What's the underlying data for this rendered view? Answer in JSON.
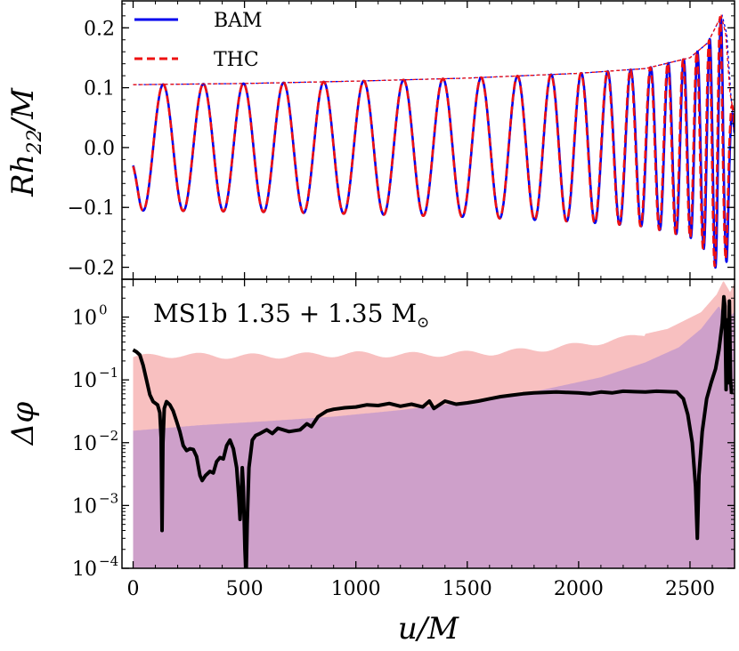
{
  "chart_data": [
    {
      "type": "line",
      "panel": "top",
      "ylabel": "Rh_22/M",
      "ylabel_parts": {
        "main": "Rh",
        "sub": "22",
        "tail": "/M"
      },
      "xlim": [
        -50,
        2700
      ],
      "ylim": [
        -0.22,
        0.245
      ],
      "yticks": [
        -0.2,
        -0.1,
        0.0,
        0.1,
        0.2
      ],
      "ytick_labels": [
        "−0.2",
        "−0.1",
        "0.0",
        "0.1",
        "0.2"
      ],
      "legend": {
        "placement": "top-left",
        "entries": [
          "BAM",
          "THC"
        ]
      },
      "series": [
        {
          "name": "BAM",
          "color": "#0000ee",
          "style": "solid",
          "t_end": 2700,
          "phase_offset": 0.0,
          "amplitude_points": [
            [
              0,
              0.105
            ],
            [
              500,
              0.107
            ],
            [
              1000,
              0.111
            ],
            [
              1500,
              0.116
            ],
            [
              2000,
              0.124
            ],
            [
              2300,
              0.132
            ],
            [
              2500,
              0.15
            ],
            [
              2580,
              0.175
            ],
            [
              2620,
              0.205
            ],
            [
              2645,
              0.22
            ],
            [
              2665,
              0.19
            ],
            [
              2685,
              0.08
            ],
            [
              2700,
              0.03
            ]
          ],
          "phase": {
            "f0": 0.00555,
            "f_end": 0.0215,
            "t_merge": 2650,
            "f_post": 0.017
          }
        },
        {
          "name": "THC",
          "color": "#ee1111",
          "style": "dashed",
          "t_end": 2700,
          "phase_offset": 0.02,
          "amplitude_points": [
            [
              0,
              0.105
            ],
            [
              500,
              0.107
            ],
            [
              1000,
              0.111
            ],
            [
              1500,
              0.116
            ],
            [
              2000,
              0.124
            ],
            [
              2300,
              0.132
            ],
            [
              2500,
              0.15
            ],
            [
              2580,
              0.175
            ],
            [
              2620,
              0.205
            ],
            [
              2640,
              0.222
            ],
            [
              2660,
              0.19
            ],
            [
              2680,
              0.09
            ],
            [
              2700,
              0.05
            ]
          ],
          "phase": {
            "f0": 0.00555,
            "f_end": 0.0215,
            "t_merge": 2645,
            "f_post": 0.017
          }
        }
      ]
    },
    {
      "type": "line",
      "panel": "bottom",
      "ylabel": "Δφ",
      "xlabel": "u/M",
      "xlim": [
        -50,
        2700
      ],
      "yscale": "log",
      "ylim": [
        0.0001,
        4.0
      ],
      "ytick_exponents": [
        0,
        -1,
        -2,
        -3,
        -4
      ],
      "ytick_base": "10",
      "xticks": [
        0,
        500,
        1000,
        1500,
        2000,
        2500
      ],
      "xtick_labels": [
        "0",
        "500",
        "1000",
        "1500",
        "2000",
        "2500"
      ],
      "annotation": {
        "text": "MS1b 1.35 + 1.35 M",
        "symbol": "⊙"
      },
      "bands": [
        {
          "name": "error-upper",
          "color": "#f7b5b5",
          "opacity": 0.85,
          "points": [
            [
              0,
              0.23
            ],
            [
              200,
              0.25
            ],
            [
              400,
              0.24
            ],
            [
              600,
              0.24
            ],
            [
              800,
              0.25
            ],
            [
              1000,
              0.26
            ],
            [
              1200,
              0.25
            ],
            [
              1400,
              0.26
            ],
            [
              1600,
              0.27
            ],
            [
              1800,
              0.3
            ],
            [
              2000,
              0.36
            ],
            [
              2200,
              0.45
            ],
            [
              2400,
              0.65
            ],
            [
              2550,
              1.2
            ],
            [
              2620,
              2.3
            ],
            [
              2650,
              3.8
            ],
            [
              2680,
              2.5
            ],
            [
              2700,
              3.5
            ]
          ],
          "wiggle": 0.1
        },
        {
          "name": "error-lower",
          "color": "#c79acb",
          "opacity": 0.85,
          "points": [
            [
              0,
              0.0155
            ],
            [
              300,
              0.019
            ],
            [
              600,
              0.022
            ],
            [
              900,
              0.026
            ],
            [
              1200,
              0.033
            ],
            [
              1500,
              0.045
            ],
            [
              1800,
              0.065
            ],
            [
              2100,
              0.11
            ],
            [
              2300,
              0.19
            ],
            [
              2450,
              0.33
            ],
            [
              2550,
              0.65
            ],
            [
              2600,
              1.1
            ],
            [
              2630,
              1.5
            ],
            [
              2660,
              0.9
            ],
            [
              2700,
              1.2
            ]
          ],
          "wiggle": 0.0
        }
      ],
      "series": [
        {
          "name": "phase-difference",
          "color": "#000000",
          "style": "solid",
          "points": [
            [
              0,
              0.3
            ],
            [
              15,
              0.28
            ],
            [
              30,
              0.25
            ],
            [
              45,
              0.17
            ],
            [
              60,
              0.1
            ],
            [
              75,
              0.058
            ],
            [
              90,
              0.045
            ],
            [
              110,
              0.04
            ],
            [
              120,
              0.03
            ],
            [
              126,
              0.012
            ],
            [
              130,
              0.0004
            ],
            [
              134,
              0.01
            ],
            [
              140,
              0.035
            ],
            [
              150,
              0.045
            ],
            [
              165,
              0.04
            ],
            [
              180,
              0.032
            ],
            [
              195,
              0.022
            ],
            [
              210,
              0.015
            ],
            [
              225,
              0.009
            ],
            [
              240,
              0.0075
            ],
            [
              255,
              0.008
            ],
            [
              270,
              0.0078
            ],
            [
              285,
              0.006
            ],
            [
              300,
              0.003
            ],
            [
              310,
              0.0025
            ],
            [
              325,
              0.003
            ],
            [
              345,
              0.0035
            ],
            [
              360,
              0.0033
            ],
            [
              375,
              0.005
            ],
            [
              390,
              0.0058
            ],
            [
              405,
              0.0055
            ],
            [
              420,
              0.009
            ],
            [
              435,
              0.011
            ],
            [
              450,
              0.008
            ],
            [
              465,
              0.004
            ],
            [
              475,
              0.0013
            ],
            [
              480,
              0.0006
            ],
            [
              485,
              0.0012
            ],
            [
              490,
              0.004
            ],
            [
              495,
              0.002
            ],
            [
              502,
              0.0002
            ],
            [
              507,
              7e-05
            ],
            [
              512,
              0.0005
            ],
            [
              520,
              0.004
            ],
            [
              535,
              0.011
            ],
            [
              550,
              0.013
            ],
            [
              570,
              0.014
            ],
            [
              600,
              0.016
            ],
            [
              625,
              0.014
            ],
            [
              650,
              0.017
            ],
            [
              700,
              0.015
            ],
            [
              750,
              0.016
            ],
            [
              780,
              0.02
            ],
            [
              800,
              0.018
            ],
            [
              830,
              0.026
            ],
            [
              870,
              0.032
            ],
            [
              900,
              0.034
            ],
            [
              950,
              0.036
            ],
            [
              1000,
              0.037
            ],
            [
              1050,
              0.04
            ],
            [
              1100,
              0.039
            ],
            [
              1150,
              0.042
            ],
            [
              1200,
              0.038
            ],
            [
              1250,
              0.041
            ],
            [
              1300,
              0.037
            ],
            [
              1330,
              0.046
            ],
            [
              1350,
              0.035
            ],
            [
              1400,
              0.046
            ],
            [
              1450,
              0.041
            ],
            [
              1500,
              0.043
            ],
            [
              1550,
              0.046
            ],
            [
              1600,
              0.05
            ],
            [
              1650,
              0.054
            ],
            [
              1700,
              0.057
            ],
            [
              1750,
              0.06
            ],
            [
              1800,
              0.062
            ],
            [
              1850,
              0.063
            ],
            [
              1900,
              0.064
            ],
            [
              1950,
              0.063
            ],
            [
              2000,
              0.062
            ],
            [
              2050,
              0.06
            ],
            [
              2100,
              0.064
            ],
            [
              2150,
              0.062
            ],
            [
              2200,
              0.066
            ],
            [
              2250,
              0.065
            ],
            [
              2300,
              0.064
            ],
            [
              2350,
              0.066
            ],
            [
              2400,
              0.065
            ],
            [
              2440,
              0.064
            ],
            [
              2470,
              0.05
            ],
            [
              2490,
              0.028
            ],
            [
              2510,
              0.01
            ],
            [
              2525,
              0.002
            ],
            [
              2533,
              0.0003
            ],
            [
              2540,
              0.003
            ],
            [
              2555,
              0.015
            ],
            [
              2575,
              0.05
            ],
            [
              2595,
              0.09
            ],
            [
              2615,
              0.15
            ],
            [
              2630,
              0.3
            ],
            [
              2645,
              0.8
            ],
            [
              2652,
              2.1
            ],
            [
              2657,
              1.5
            ],
            [
              2662,
              0.07
            ],
            [
              2667,
              0.9
            ],
            [
              2672,
              0.09
            ],
            [
              2677,
              1.8
            ],
            [
              2682,
              0.1
            ],
            [
              2687,
              0.06
            ]
          ]
        }
      ]
    }
  ]
}
